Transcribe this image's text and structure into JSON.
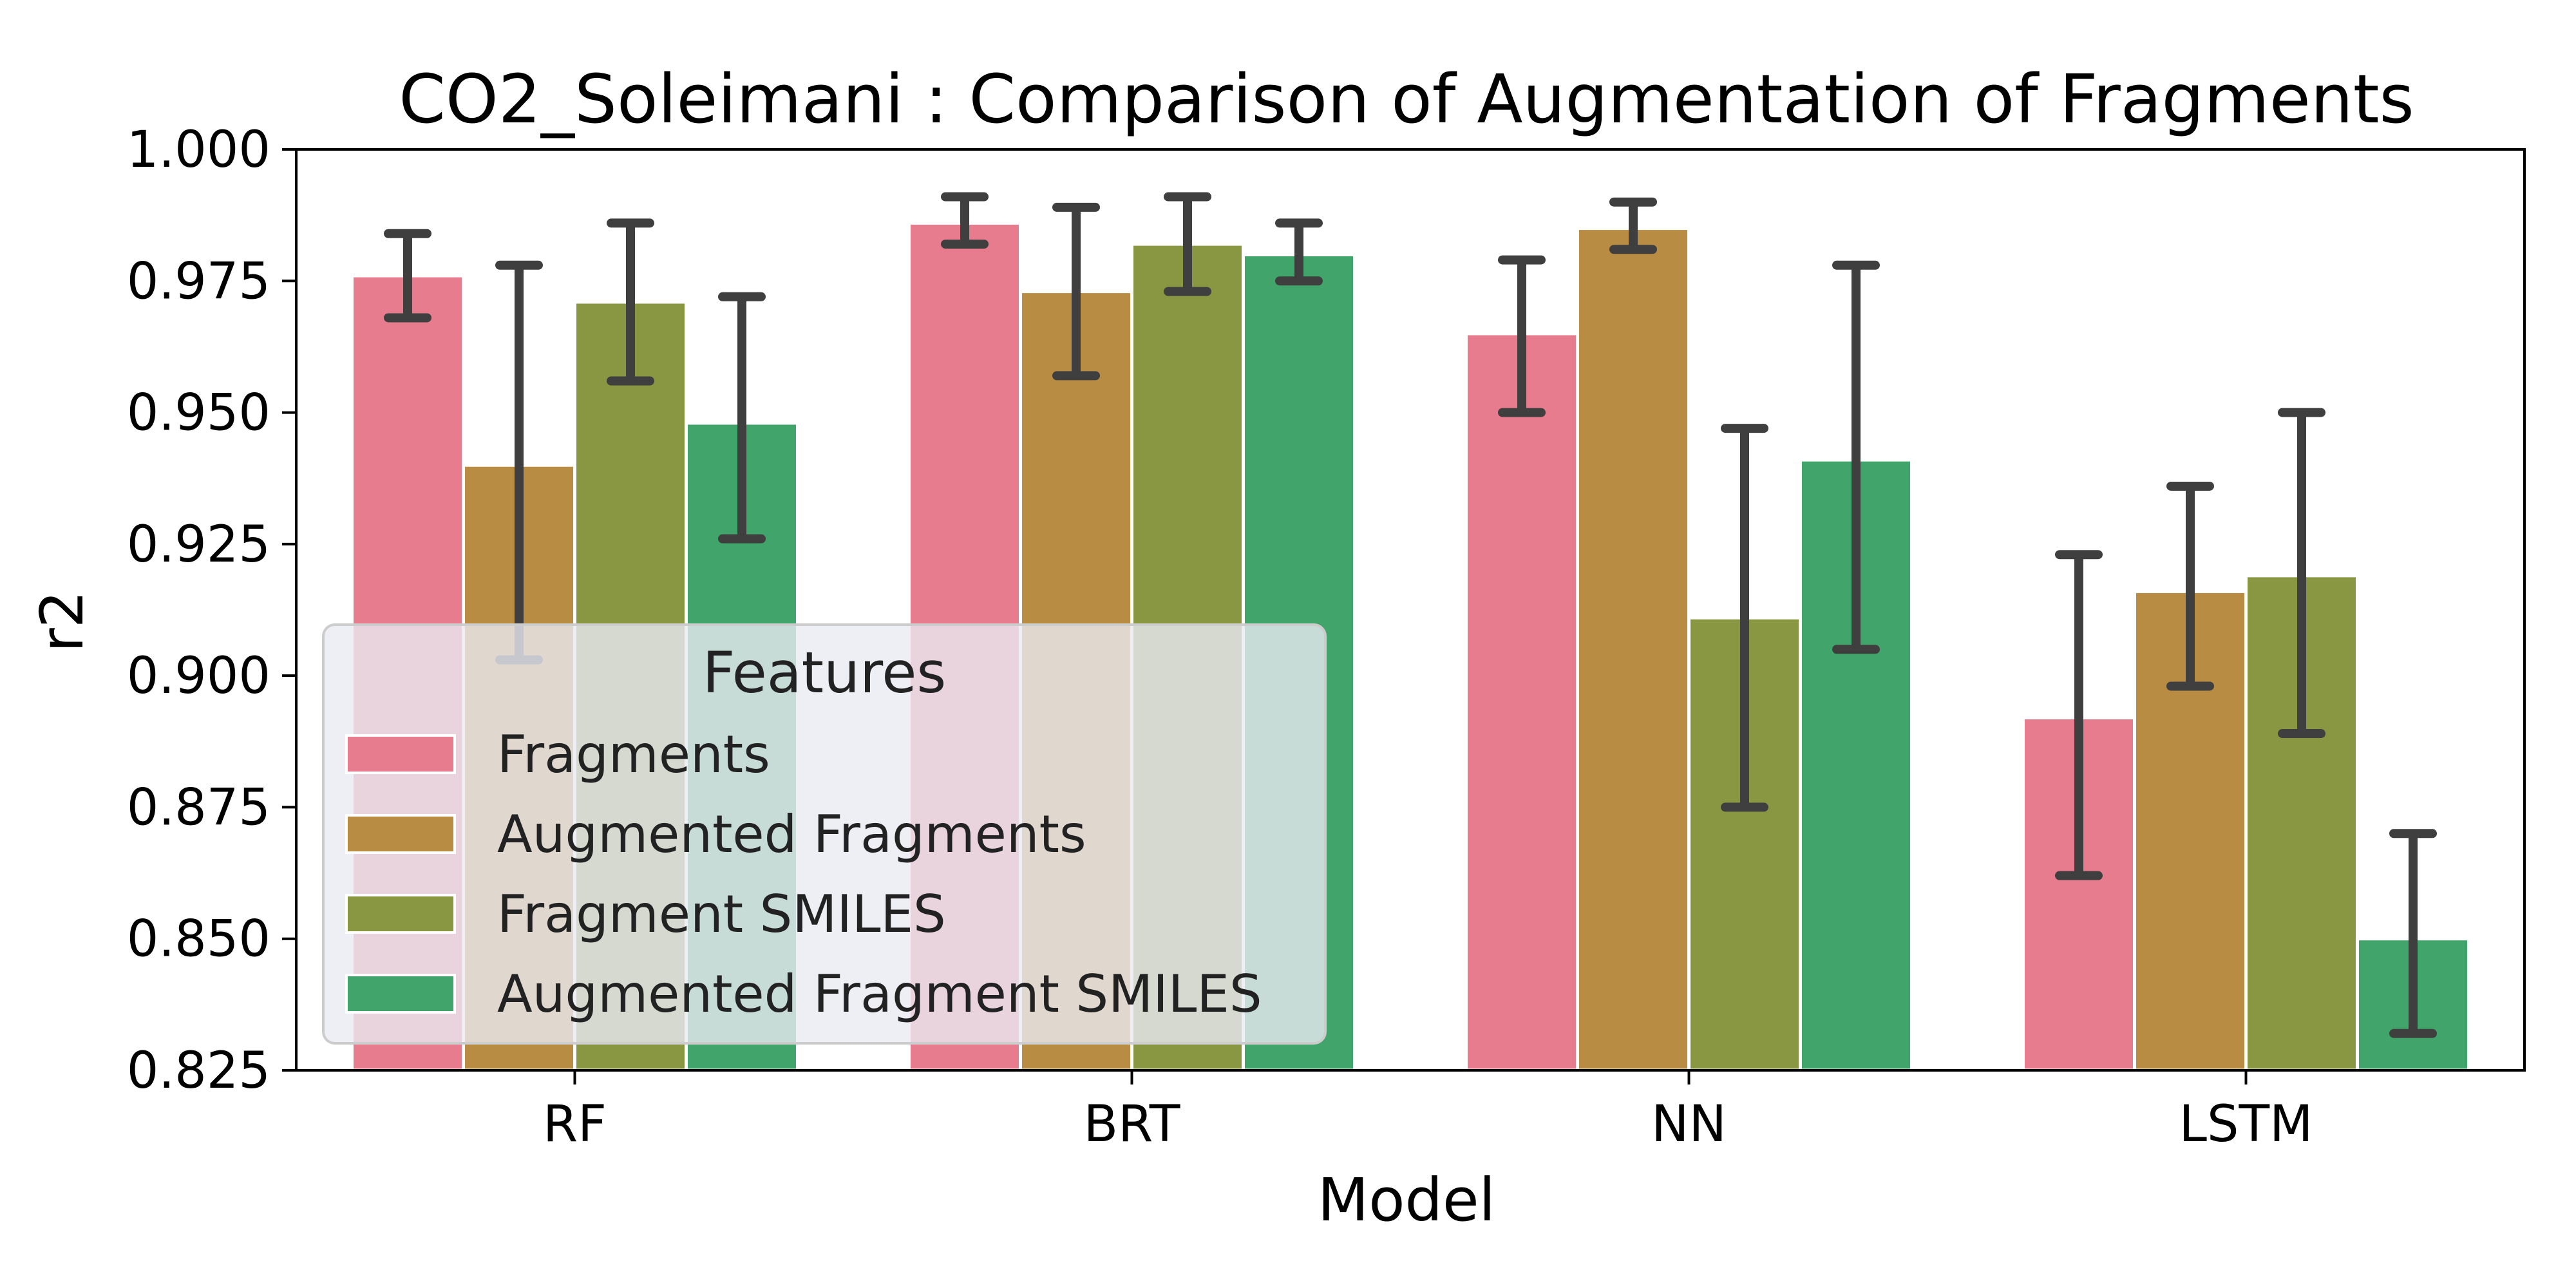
{
  "chart_data": {
    "type": "bar",
    "title": "CO2_Soleimani : Comparison of Augmentation of Fragments",
    "xlabel": "Model",
    "ylabel": "r2",
    "categories": [
      "RF",
      "BRT",
      "NN",
      "LSTM"
    ],
    "ylim": [
      0.825,
      1.0
    ],
    "yticks": [
      "0.825",
      "0.850",
      "0.875",
      "0.900",
      "0.925",
      "0.950",
      "0.975",
      "1.000"
    ],
    "grid": false,
    "legend": {
      "title": "Features",
      "position": "lower-left"
    },
    "series": [
      {
        "name": "Fragments",
        "color": "#e77c8e",
        "values": [
          0.976,
          0.986,
          0.965,
          0.892
        ],
        "err_low": [
          0.968,
          0.982,
          0.95,
          0.862
        ],
        "err_high": [
          0.984,
          0.991,
          0.979,
          0.923
        ]
      },
      {
        "name": "Augmented Fragments",
        "color": "#b98c43",
        "values": [
          0.94,
          0.973,
          0.985,
          0.916
        ],
        "err_low": [
          0.903,
          0.957,
          0.981,
          0.898
        ],
        "err_high": [
          0.978,
          0.989,
          0.99,
          0.936
        ]
      },
      {
        "name": "Fragment SMILES",
        "color": "#899742",
        "values": [
          0.971,
          0.982,
          0.911,
          0.919
        ],
        "err_low": [
          0.956,
          0.973,
          0.875,
          0.889
        ],
        "err_high": [
          0.986,
          0.991,
          0.947,
          0.95
        ]
      },
      {
        "name": "Augmented Fragment SMILES",
        "color": "#41a46b",
        "values": [
          0.948,
          0.98,
          0.941,
          0.85
        ],
        "err_low": [
          0.926,
          0.975,
          0.905,
          0.832
        ],
        "err_high": [
          0.972,
          0.986,
          0.978,
          0.87
        ]
      }
    ]
  }
}
